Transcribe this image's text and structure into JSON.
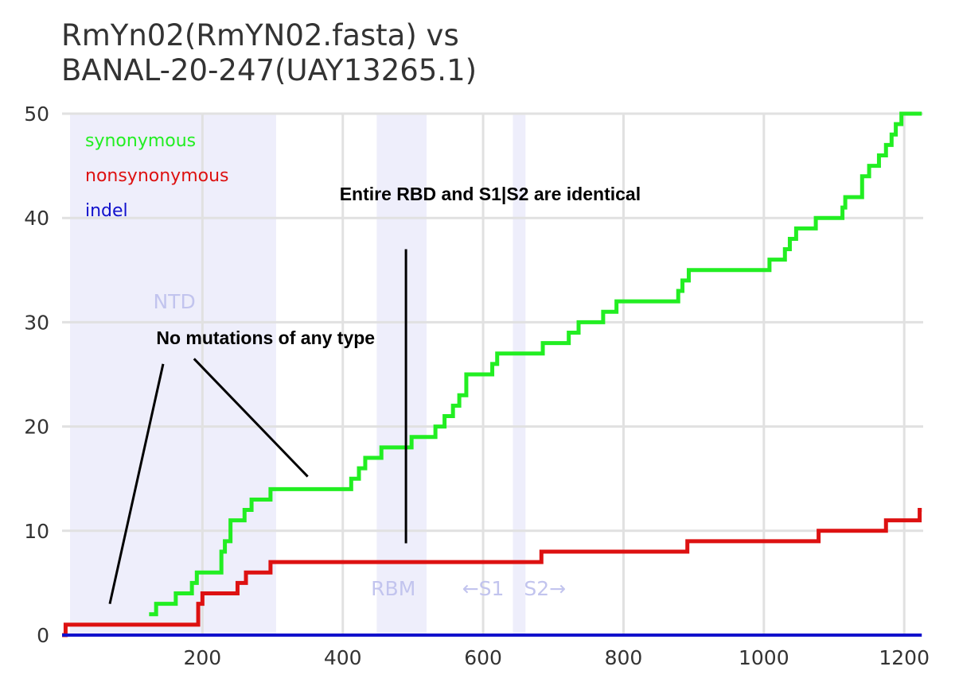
{
  "chart_data": {
    "type": "line",
    "title": [
      "RmYn02(RmYN02.fasta) vs",
      "BANAL-20-247(UAY13265.1)"
    ],
    "xlabel": "",
    "ylabel": "",
    "xlim": [
      0,
      1227
    ],
    "ylim": [
      0,
      50
    ],
    "x_ticks": [
      200,
      400,
      600,
      800,
      1000,
      1200
    ],
    "y_ticks": [
      0,
      10,
      20,
      30,
      40,
      50
    ],
    "grid": true,
    "legend_position": "top-left",
    "colors": {
      "synonymous": "#22ee22",
      "nonsynonymous": "#dd1111",
      "indel": "#1111cc",
      "region": "#eeeefb",
      "region_label": "#c2c4ee",
      "grid": "#e1e1e1"
    },
    "series": [
      {
        "name": "synonymous",
        "steps": [
          [
            124,
            2
          ],
          [
            134,
            3
          ],
          [
            162,
            4
          ],
          [
            185,
            5
          ],
          [
            192,
            6
          ],
          [
            227,
            8
          ],
          [
            232,
            9
          ],
          [
            240,
            11
          ],
          [
            260,
            12
          ],
          [
            270,
            13
          ],
          [
            297,
            14
          ],
          [
            412,
            15
          ],
          [
            423,
            16
          ],
          [
            432,
            17
          ],
          [
            455,
            18
          ],
          [
            498,
            19
          ],
          [
            532,
            20
          ],
          [
            545,
            21
          ],
          [
            557,
            22
          ],
          [
            566,
            23
          ],
          [
            576,
            25
          ],
          [
            613,
            26
          ],
          [
            620,
            27
          ],
          [
            685,
            28
          ],
          [
            722,
            29
          ],
          [
            736,
            30
          ],
          [
            771,
            31
          ],
          [
            790,
            32
          ],
          [
            878,
            33
          ],
          [
            884,
            34
          ],
          [
            893,
            35
          ],
          [
            1008,
            36
          ],
          [
            1030,
            37
          ],
          [
            1037,
            38
          ],
          [
            1046,
            39
          ],
          [
            1074,
            40
          ],
          [
            1112,
            41
          ],
          [
            1116,
            42
          ],
          [
            1140,
            44
          ],
          [
            1150,
            45
          ],
          [
            1164,
            46
          ],
          [
            1174,
            47
          ],
          [
            1182,
            48
          ],
          [
            1188,
            49
          ],
          [
            1196,
            50
          ]
        ],
        "x_end": 1225
      },
      {
        "name": "nonsynonymous",
        "steps": [
          [
            0,
            0
          ],
          [
            5,
            1
          ],
          [
            194,
            3
          ],
          [
            200,
            4
          ],
          [
            250,
            5
          ],
          [
            262,
            6
          ],
          [
            297,
            7
          ],
          [
            683,
            8
          ],
          [
            891,
            9
          ],
          [
            1078,
            10
          ],
          [
            1174,
            11
          ],
          [
            1222,
            12
          ]
        ],
        "x_end": 1225
      },
      {
        "name": "indel",
        "steps": [
          [
            0,
            0
          ]
        ],
        "x_end": 1225
      }
    ],
    "regions": [
      {
        "label": "NTD",
        "x0": 0,
        "x1": 305,
        "label_x": 160,
        "label_y": 32
      },
      {
        "label": "RBM",
        "x0": 437,
        "x1": 508,
        "label_x": 472,
        "label_y": 4.5
      },
      {
        "label": "",
        "x0": 631,
        "x1": 649
      }
    ],
    "region_labels": [
      {
        "text": "←S1",
        "x": 600,
        "y": 4.5
      },
      {
        "text": "S2→",
        "x": 688,
        "y": 4.5
      }
    ],
    "annotations": [
      {
        "text": "No mutations of any type",
        "x": 290,
        "y": 28.5,
        "lines": [
          [
            [
              144,
              26
            ],
            [
              68,
              3
            ]
          ],
          [
            [
              188,
              26.5
            ],
            [
              350,
              15.2
            ]
          ]
        ]
      },
      {
        "text": "Entire RBD and S1|S2 are identical",
        "x": 610,
        "y": 42.3,
        "lines": [
          [
            [
              490,
              37
            ],
            [
              490,
              8.8
            ]
          ]
        ]
      }
    ]
  }
}
